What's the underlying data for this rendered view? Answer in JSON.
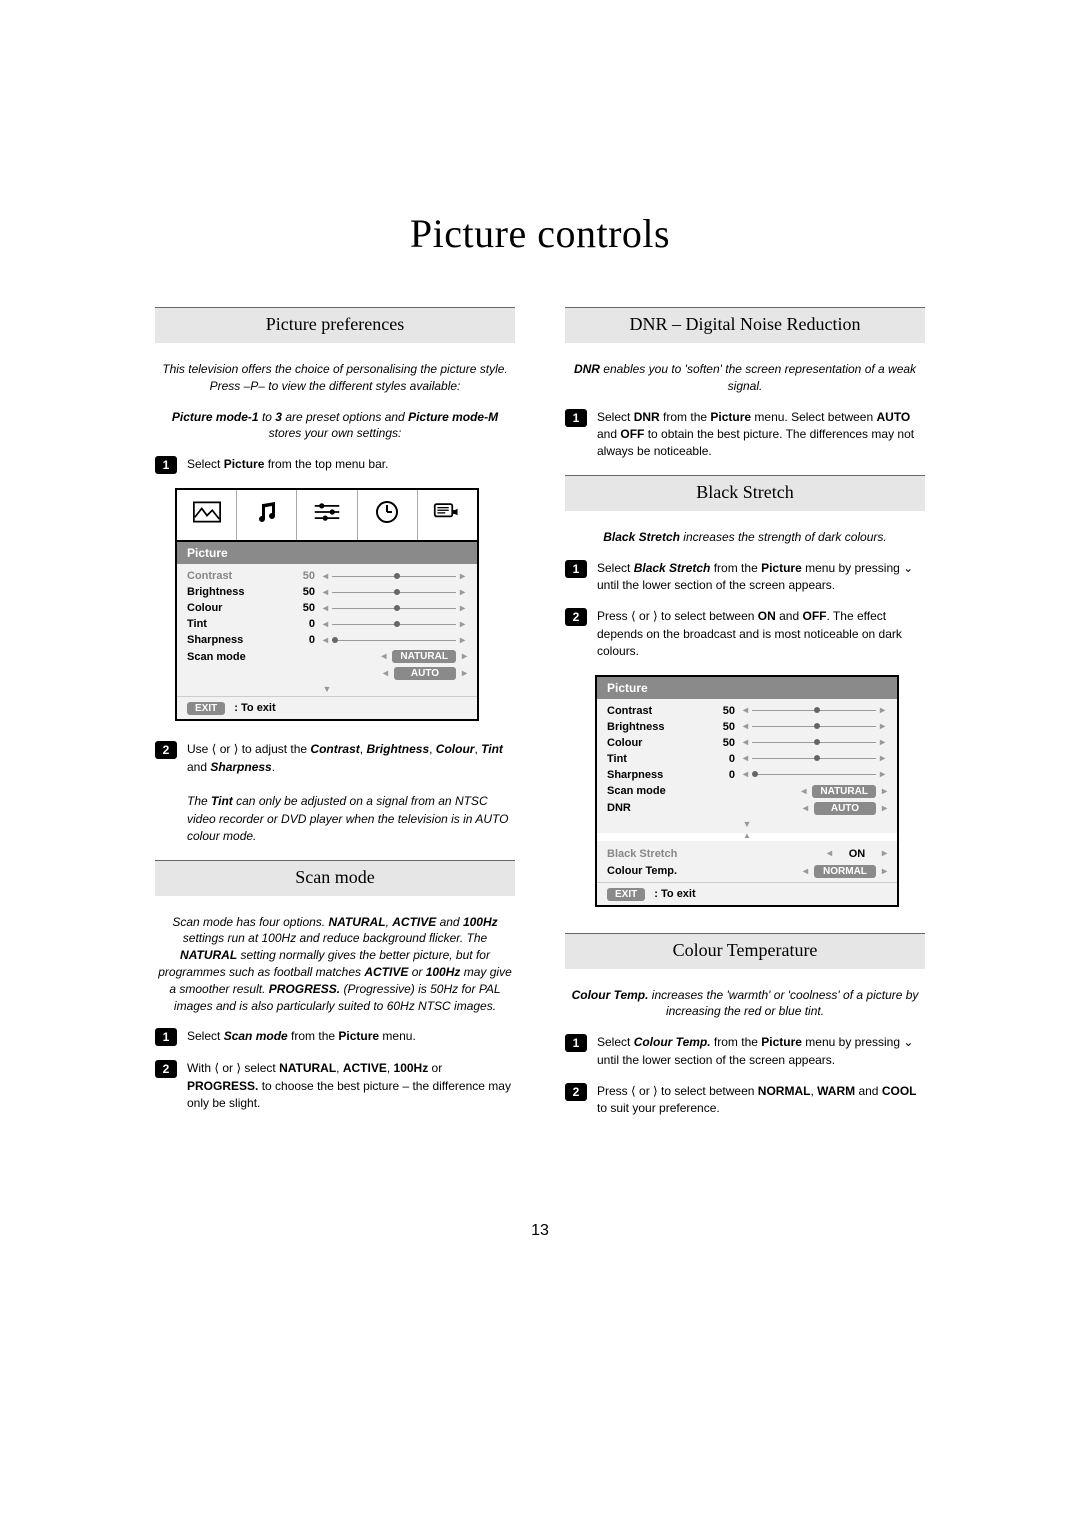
{
  "page_title": "Picture controls",
  "page_number": "13",
  "left": {
    "prefs": {
      "header": "Picture preferences",
      "intro_html": "This television offers the choice of personalising the picture style. Press –P– to view the different styles available:",
      "preset_note_html": "<b><i>Picture mode-1</i></b><i> to </i><b><i>3</i></b><i> are preset options and </i><b><i>Picture mode-M</i></b><i> stores your own settings:</i>",
      "step1": "Select <b>Picture</b> from the top menu bar.",
      "step2_html": "Use ⟨ or ⟩ to adjust the <b><i>Contrast</i></b>, <b><i>Brightness</i></b>, <b><i>Colour</i></b>, <b><i>Tint</i></b> and <b><i>Sharpness</i></b>.",
      "tint_note": "The <b>Tint</b> can only be adjusted on a signal from an NTSC video recorder or DVD player when the television is in AUTO colour mode."
    },
    "scan": {
      "header": "Scan mode",
      "intro_html": "Scan mode has four options. <b>NATURAL</b>, <b>ACTIVE</b> and <b>100Hz</b> settings run at 100Hz and reduce background flicker. The <b>NATURAL</b> setting normally gives the better picture, but for programmes such as football matches <b>ACTIVE</b> or <b>100Hz</b> may give a smoother result. <b>PROGRESS.</b> (Progressive) is 50Hz for PAL images and is also particularly suited to 60Hz NTSC images.",
      "step1": "Select <b><i>Scan mode</i></b> from the <b>Picture</b> menu.",
      "step2_html": "With ⟨ or ⟩ select <b>NATURAL</b>, <b>ACTIVE</b>, <b>100Hz</b> or <b>PROGRESS.</b> to choose the best picture – the difference may only be slight."
    },
    "osd1": {
      "title": "Picture",
      "rows": [
        {
          "label": "Contrast",
          "value": "50",
          "dot": 50,
          "hl": true
        },
        {
          "label": "Brightness",
          "value": "50",
          "dot": 50
        },
        {
          "label": "Colour",
          "value": "50",
          "dot": 50
        },
        {
          "label": "Tint",
          "value": "0",
          "dot": 50
        },
        {
          "label": "Sharpness",
          "value": "0",
          "dot": 0
        },
        {
          "label": "Scan mode",
          "pill": "NATURAL"
        },
        {
          "label": "",
          "pill": "AUTO"
        }
      ],
      "exit": "EXIT",
      "exit_txt": ": To exit"
    }
  },
  "right": {
    "dnr": {
      "header": "DNR – Digital Noise Reduction",
      "intro_html": "<b>DNR</b> enables you to 'soften' the screen representation of a weak signal.",
      "step1": "Select <b>DNR</b> from the <b>Picture</b> menu. Select between <b>AUTO</b> and <b>OFF</b> to obtain the best picture. The differences may not always be noticeable."
    },
    "black": {
      "header": "Black Stretch",
      "intro_html": "<b>Black Stretch</b> increases the strength of dark colours.",
      "step1": "Select <b><i>Black Stretch</i></b> from the <b>Picture</b> menu by pressing ⌄ until the lower section of the screen appears.",
      "step2_html": "Press ⟨ or ⟩ to select between <b>ON</b> and <b>OFF</b>. The effect depends on the broadcast and is most noticeable on dark colours."
    },
    "osd2": {
      "title": "Picture",
      "rows": [
        {
          "label": "Contrast",
          "value": "50",
          "dot": 50
        },
        {
          "label": "Brightness",
          "value": "50",
          "dot": 50
        },
        {
          "label": "Colour",
          "value": "50",
          "dot": 50
        },
        {
          "label": "Tint",
          "value": "0",
          "dot": 50
        },
        {
          "label": "Sharpness",
          "value": "0",
          "dot": 0
        },
        {
          "label": "Scan mode",
          "pill": "NATURAL"
        },
        {
          "label": "DNR",
          "pill": "AUTO"
        }
      ],
      "lower_rows": [
        {
          "label": "Black Stretch",
          "plain": "ON",
          "hl": true
        },
        {
          "label": "Colour Temp.",
          "pill": "NORMAL"
        }
      ],
      "exit": "EXIT",
      "exit_txt": ": To exit"
    },
    "colortemp": {
      "header": "Colour Temperature",
      "intro_html": "<b>Colour Temp.</b> increases the 'warmth' or 'coolness' of a picture by increasing the red or blue tint.",
      "step1": "Select <b><i>Colour Temp.</i></b> from the <b>Picture</b> menu by pressing ⌄ until the lower section of the screen appears.",
      "step2_html": "Press ⟨ or ⟩ to select between <b>NORMAL</b>, <b>WARM</b> and <b>COOL</b> to suit your preference."
    }
  }
}
